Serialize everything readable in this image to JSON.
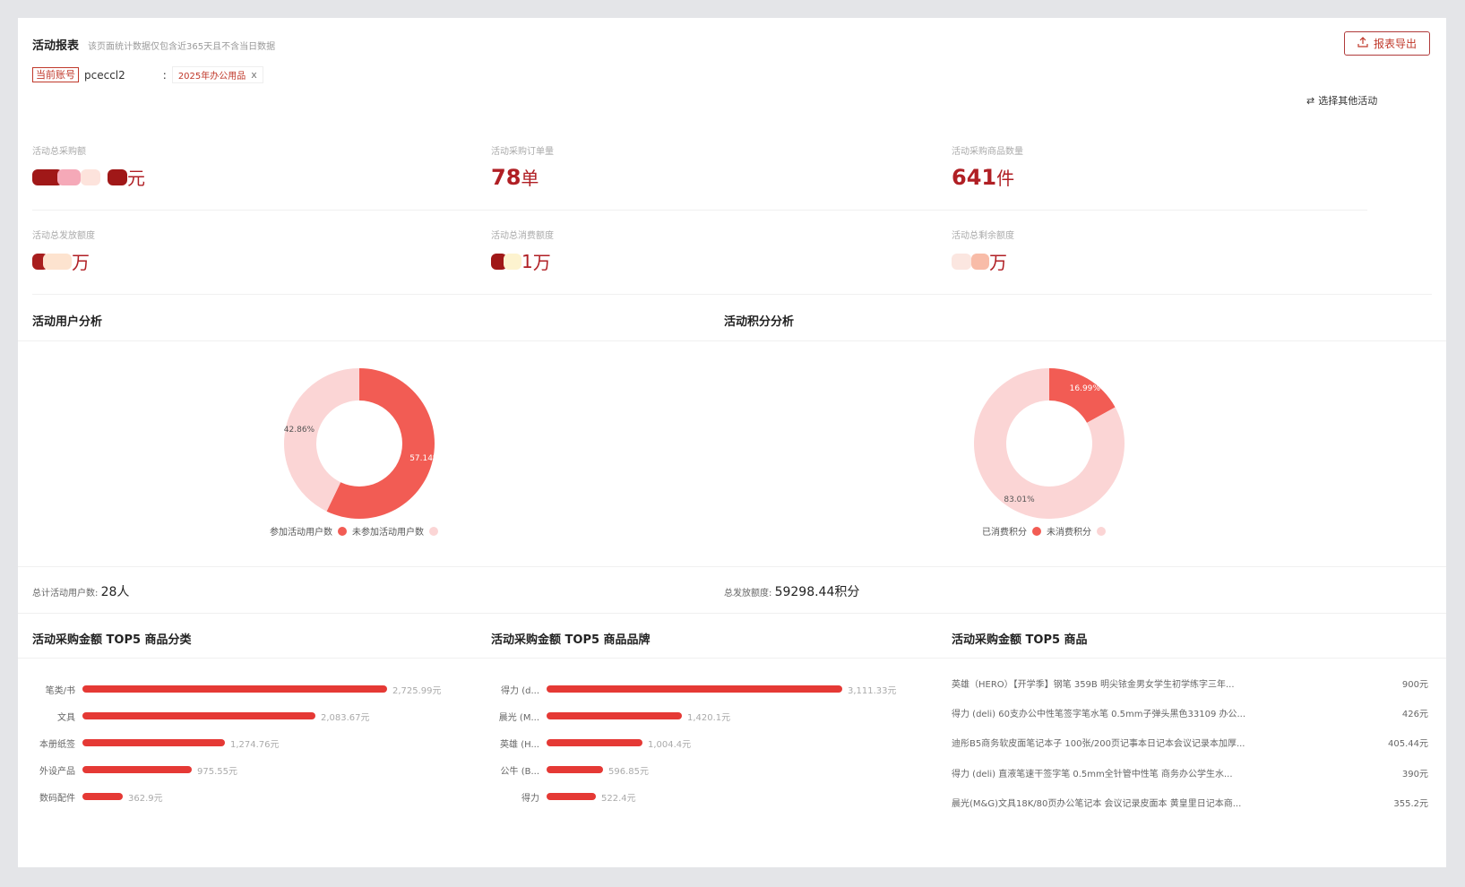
{
  "header": {
    "title": "活动报表",
    "subtitle": "该页面统计数据仅包含近365天且不含当日数据",
    "export_label": "报表导出",
    "account_badge": "当前账号",
    "account_name": "pceccl2",
    "colon": ":",
    "activity_tag": "2025年办公用品",
    "close_symbol": "x",
    "select_other": "选择其他活动"
  },
  "metrics": [
    {
      "label": "活动总采购额",
      "value": "",
      "unit": "元"
    },
    {
      "label": "活动采购订单量",
      "value": "78",
      "unit": "单"
    },
    {
      "label": "活动采购商品数量",
      "value": "641",
      "unit": "件"
    },
    {
      "label": "活动总发放额度",
      "value": "",
      "unit": "万"
    },
    {
      "label": "活动总消费额度",
      "value": "1",
      "unit": "万"
    },
    {
      "label": "活动总剩余额度",
      "value": "",
      "unit": "万"
    }
  ],
  "user_analysis": {
    "title": "活动用户分析",
    "slices": [
      {
        "label": "参加活动用户数",
        "percent": 57.14,
        "percent_text": "57.14%",
        "color": "#f25c54"
      },
      {
        "label": "未参加活动用户数",
        "percent": 42.86,
        "percent_text": "42.86%",
        "color": "#fbd5d5"
      }
    ],
    "summary_label": "总计活动用户数:",
    "summary_value": "28人"
  },
  "points_analysis": {
    "title": "活动积分分析",
    "slices": [
      {
        "label": "已消费积分",
        "percent": 16.99,
        "percent_text": "16.99%",
        "color": "#f25c54"
      },
      {
        "label": "未消费积分",
        "percent": 83.01,
        "percent_text": "83.01%",
        "color": "#fbd5d5"
      }
    ],
    "summary_label": "总发放额度:",
    "summary_value": "59298.44积分"
  },
  "chart_data": [
    {
      "type": "bar",
      "title": "活动采购金额 TOP5 商品分类",
      "categories": [
        "笔类/书",
        "文具",
        "本册纸签",
        "外设产品",
        "数码配件"
      ],
      "values": [
        2725.99,
        2083.67,
        1274.76,
        975.55,
        362.9
      ],
      "value_labels": [
        "2,725.99元",
        "2,083.67元",
        "1,274.76元",
        "975.55元",
        "362.9元"
      ]
    },
    {
      "type": "bar",
      "title": "活动采购金额 TOP5 商品品牌",
      "categories": [
        "得力 (d...",
        "晨光 (M...",
        "英雄 (H...",
        "公牛 (B...",
        "得力"
      ],
      "values": [
        3111.33,
        1420.1,
        1004.4,
        596.85,
        522.4
      ],
      "value_labels": [
        "3,111.33元",
        "1,420.1元",
        "1,004.4元",
        "596.85元",
        "522.4元"
      ]
    }
  ],
  "top_products": {
    "title": "活动采购金额 TOP5 商品",
    "items": [
      {
        "name": "英雄（HERO）【开学季】钢笔 359B 明尖铱金男女学生初学练字三年...",
        "amount": "900元"
      },
      {
        "name": "得力 (deli) 60支办公中性笔签字笔水笔 0.5mm子弹头黑色33109 办公...",
        "amount": "426元"
      },
      {
        "name": "迪彤B5商务软皮面笔记本子 100张/200页记事本日记本会议记录本加厚...",
        "amount": "405.44元"
      },
      {
        "name": "得力 (deli) 直液笔速干签字笔 0.5mm全针管中性笔 商务办公学生水...",
        "amount": "390元"
      },
      {
        "name": "晨光(M&G)文具18K/80页办公笔记本 会议记录皮面本 黄皇里日记本商...",
        "amount": "355.2元"
      }
    ]
  },
  "icons": {
    "export": "upload-icon",
    "swap": "swap-icon"
  }
}
